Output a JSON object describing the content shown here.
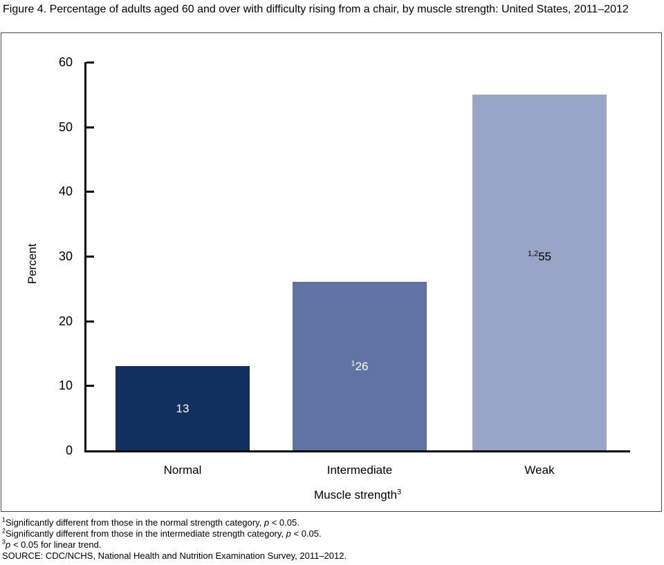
{
  "figure": {
    "title": "Figure 4. Percentage of adults aged 60 and over with difficulty rising from a chair, by muscle strength: United States, 2011–2012"
  },
  "chart_data": {
    "type": "bar",
    "title": "Figure 4. Percentage of adults aged 60 and over with difficulty rising from a chair, by muscle strength: United States, 2011–2012",
    "categories": [
      "Normal",
      "Intermediate",
      "Weak"
    ],
    "values": [
      13,
      26,
      55
    ],
    "bar_labels": [
      {
        "sup": "",
        "value": "13"
      },
      {
        "sup": "1",
        "value": "26"
      },
      {
        "sup": "1,2",
        "value": "55"
      }
    ],
    "bar_colors": [
      "#12305e",
      "#5f74a3",
      "#99a5c6"
    ],
    "bar_label_colors": [
      "#ffffff",
      "#ffffff",
      "#000000"
    ],
    "xlabel": {
      "text": "Muscle strength",
      "sup": "3"
    },
    "ylabel": "Percent",
    "ylim": [
      0,
      60
    ],
    "yticks": [
      0,
      10,
      20,
      30,
      40,
      50,
      60
    ],
    "grid": false,
    "legend": null
  },
  "footnotes": [
    {
      "sup": "1",
      "pre": "Significantly different from those in the normal strength category, ",
      "italic": "p",
      "post": " < 0.05."
    },
    {
      "sup": "2",
      "pre": "Significantly different from those in the intermediate strength category, ",
      "italic": "p",
      "post": " < 0.05."
    },
    {
      "sup": "3",
      "pre": "",
      "italic": "p",
      "post": " < 0.05 for linear trend."
    },
    {
      "sup": "",
      "pre": "SOURCE: CDC/NCHS, National Health and Nutrition Examination Survey, 2011–2012.",
      "italic": "",
      "post": ""
    }
  ]
}
